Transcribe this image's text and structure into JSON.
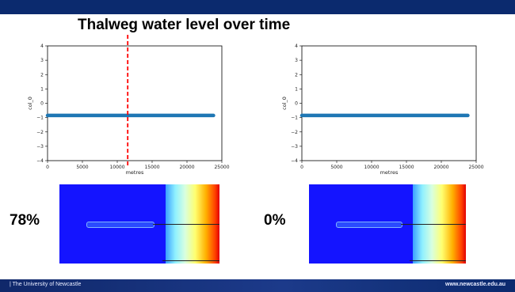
{
  "slide": {
    "title": "Thalweg water level over time",
    "footer_left": "| The University of Newcastle",
    "footer_right": "www.newcastle.edu.au",
    "colors": {
      "header": "#0b2a6e",
      "series": "#1f77b4",
      "marker": "#ff0000",
      "heatmap_base": "#1414ff"
    }
  },
  "panels": [
    {
      "percent": "78%",
      "marker_x": 11500
    },
    {
      "percent": "0%"
    }
  ],
  "chart_data": [
    {
      "type": "line",
      "title": "",
      "xlabel": "metres",
      "ylabel": "col_0",
      "xlim": [
        0,
        25000
      ],
      "ylim": [
        -4,
        4
      ],
      "xticks": [
        0,
        5000,
        10000,
        15000,
        20000,
        25000
      ],
      "yticks": [
        -4,
        -3,
        -2,
        -1,
        0,
        1,
        2,
        3,
        4
      ],
      "series": [
        {
          "x": [
            0,
            23800
          ],
          "y": [
            -0.85,
            -0.85
          ]
        }
      ],
      "grid": false
    },
    {
      "type": "line",
      "title": "",
      "xlabel": "metres",
      "ylabel": "col_0",
      "xlim": [
        0,
        25000
      ],
      "ylim": [
        -4,
        4
      ],
      "xticks": [
        0,
        5000,
        10000,
        15000,
        20000,
        25000
      ],
      "yticks": [
        -4,
        -3,
        -2,
        -1,
        0,
        1,
        2,
        3,
        4
      ],
      "series": [
        {
          "x": [
            0,
            23800
          ],
          "y": [
            -0.85,
            -0.85
          ]
        }
      ],
      "grid": false
    }
  ]
}
